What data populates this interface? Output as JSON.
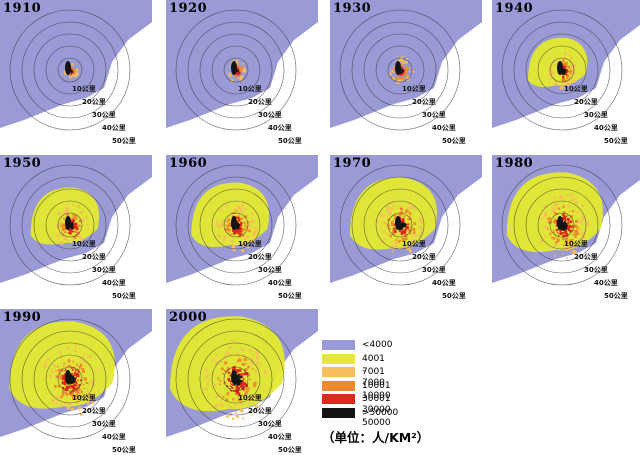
{
  "map_years": [
    "1910",
    "1920",
    "1930",
    "1940",
    "1950",
    "1960",
    "1970",
    "1980",
    "1990",
    "2000"
  ],
  "ring_labels": [
    "10公里",
    "20公里",
    "30公里",
    "40公里",
    "50公里"
  ],
  "legend": {
    "items": [
      {
        "label": "<4000",
        "color": "#9a9ad6"
      },
      {
        "label": "4001 - 7000",
        "color": "#e3ea2f"
      },
      {
        "label": "7001 - 10000",
        "color": "#f7bd5a"
      },
      {
        "label": "10001 - 30000",
        "color": "#ee8a2e"
      },
      {
        "label": "30001 - 50000",
        "color": "#e0261d"
      },
      {
        "label": ">50000",
        "color": "#141414"
      }
    ],
    "unit": "（单位：人/KM²）"
  },
  "ui": {
    "sea_color": "#ffffff",
    "land_color": "#9a9ad6",
    "ring_color": "#333333"
  }
}
